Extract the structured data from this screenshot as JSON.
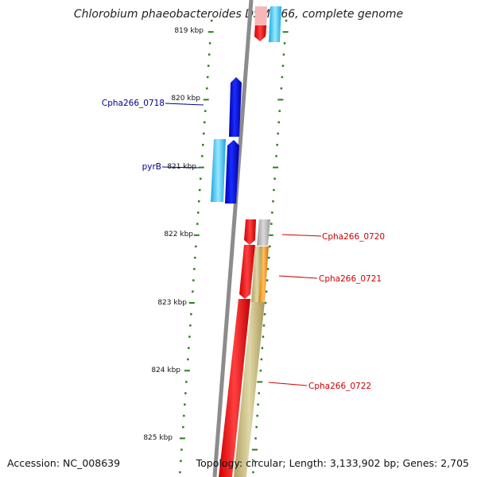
{
  "title": "Chlorobium phaeobacteroides DSM 266, complete genome",
  "accession": "Accession: NC_008639",
  "topology": "Topology: circular; Length: 3,133,902 bp; Genes: 2,705",
  "scale_labels": [
    "819 kbp",
    "820 kbp",
    "821 kbp",
    "822 kbp",
    "823 kbp",
    "824 kbp",
    "825 kbp"
  ],
  "gene_labels": [
    {
      "name": "Cpha266_0718",
      "color": "#00008b"
    },
    {
      "name": "pyrB",
      "color": "#00008b"
    },
    {
      "name": "Cpha266_0720",
      "color": "#cc0000"
    },
    {
      "name": "Cpha266_0721",
      "color": "#cc0000"
    },
    {
      "name": "Cpha266_0722",
      "color": "#cc0000"
    }
  ],
  "colors": {
    "backbone": "#8c8c8c",
    "tick": "#2e7d1e",
    "gene_blue": "#0a14e6",
    "gene_cyan": "#33c6f0",
    "gene_red": "#f01010",
    "gene_gray": "#b4b4b4",
    "gene_orange": "#f29a1a",
    "gene_olive": "#c4b87a",
    "gene_pink": "#f7b7b7"
  }
}
